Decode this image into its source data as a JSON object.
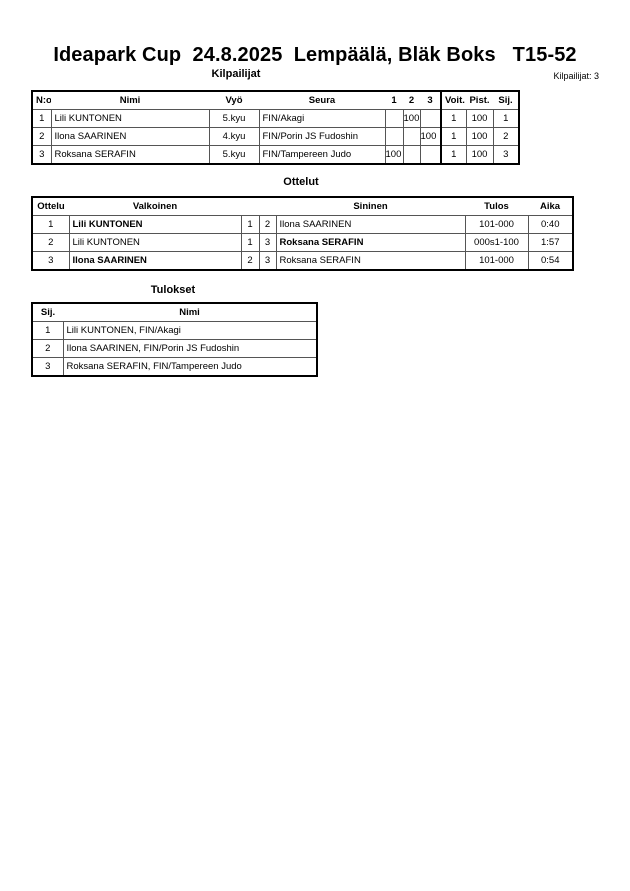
{
  "header": {
    "title": "Ideapark Cup  24.8.2025  Lempäälä, Bläk Boks   T15-52",
    "competitors_heading": "Kilpailijat",
    "competitors_count": "Kilpailijat: 3"
  },
  "competitors": {
    "columns": [
      "N:o",
      "Nimi",
      "Vyö",
      "Seura",
      "1",
      "2",
      "3",
      "Voit.",
      "Pist.",
      "Sij."
    ],
    "rows": [
      [
        "1",
        "Lili KUNTONEN",
        "5.kyu",
        "FIN/Akagi",
        "",
        "100",
        "",
        "1",
        "100",
        "1"
      ],
      [
        "2",
        "Ilona SAARINEN",
        "4.kyu",
        "FIN/Porin JS Fudoshin",
        "",
        "",
        "100",
        "1",
        "100",
        "2"
      ],
      [
        "3",
        "Roksana SERAFIN",
        "5.kyu",
        "FIN/Tampereen Judo",
        "100",
        "",
        "",
        "1",
        "100",
        "3"
      ]
    ]
  },
  "matches": {
    "heading": "Ottelut",
    "columns": [
      "Ottelu",
      "Valkoinen",
      "",
      "",
      "Sininen",
      "Tulos",
      "Aika"
    ],
    "rows": [
      [
        "1",
        "Lili KUNTONEN",
        "1",
        "2",
        "Ilona SAARINEN",
        "101-000",
        "0:40"
      ],
      [
        "2",
        "Lili KUNTONEN",
        "1",
        "3",
        "Roksana SERAFIN",
        "000s1-100",
        "1:57"
      ],
      [
        "3",
        "Ilona SAARINEN",
        "2",
        "3",
        "Roksana SERAFIN",
        "101-000",
        "0:54"
      ]
    ],
    "winner": [
      "white",
      "blue",
      "white"
    ]
  },
  "results": {
    "heading": "Tulokset",
    "columns": [
      "Sij.",
      "Nimi"
    ],
    "rows": [
      [
        "1",
        "Lili KUNTONEN, FIN/Akagi"
      ],
      [
        "2",
        "Ilona SAARINEN, FIN/Porin JS Fudoshin"
      ],
      [
        "3",
        "Roksana SERAFIN, FIN/Tampereen Judo"
      ]
    ]
  }
}
